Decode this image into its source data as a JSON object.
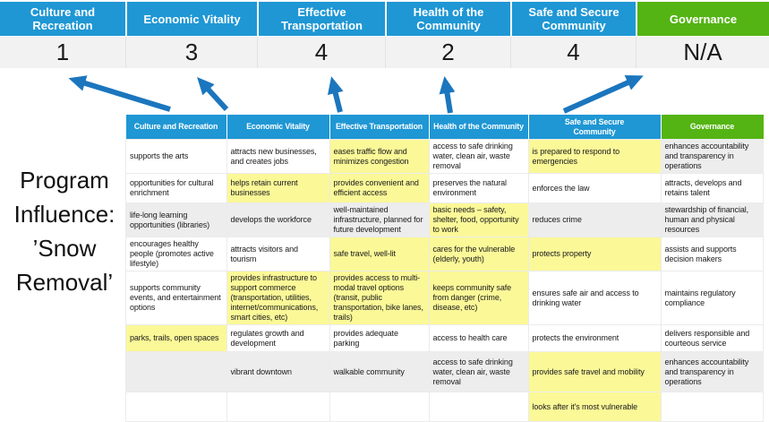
{
  "title": "Program Influence: ’Snow Removal’",
  "colors": {
    "header_blue": "#1F97D4",
    "header_green": "#54B413",
    "highlight_yellow": "#FBF898",
    "row_gray": "#EDEDED",
    "score_band_gray": "#F2F2F2",
    "arrow_blue": "#1B76BE",
    "text_dark": "#1A1A1A"
  },
  "top_band": {
    "columns": [
      {
        "label": "Culture and Recreation",
        "score": "1",
        "accent": "blue"
      },
      {
        "label": "Economic Vitality",
        "score": "3",
        "accent": "blue"
      },
      {
        "label": "Effective Transportation",
        "score": "4",
        "accent": "blue"
      },
      {
        "label": "Health of the Community",
        "score": "2",
        "accent": "blue"
      },
      {
        "label": "Safe and Secure Community",
        "score": "4",
        "accent": "blue"
      },
      {
        "label": "Governance",
        "score": "N/A",
        "accent": "green"
      }
    ]
  },
  "matrix": {
    "headers": [
      {
        "label": "Culture and Recreation",
        "accent": "blue"
      },
      {
        "label": "Economic Vitality",
        "accent": "blue"
      },
      {
        "label": "Effective Transportation",
        "accent": "blue"
      },
      {
        "label": "Health of the Community",
        "accent": "blue"
      },
      {
        "label": "Safe and Secure Community",
        "accent": "blue"
      },
      {
        "label": "Governance",
        "accent": "green"
      }
    ],
    "rows": [
      [
        {
          "t": "supports the arts",
          "bg": "white"
        },
        {
          "t": "attracts new businesses, and creates jobs",
          "bg": "white"
        },
        {
          "t": "eases traffic flow and minimizes congestion",
          "bg": "yellow"
        },
        {
          "t": "access to safe drinking water, clean air, waste removal",
          "bg": "white"
        },
        {
          "t": "is prepared to respond to emergencies",
          "bg": "yellow"
        },
        {
          "t": "enhances accountability and transparency in operations",
          "bg": "gray"
        }
      ],
      [
        {
          "t": "opportunities for cultural enrichment",
          "bg": "white"
        },
        {
          "t": "helps retain current businesses",
          "bg": "yellow"
        },
        {
          "t": "provides convenient and efficient access",
          "bg": "yellow"
        },
        {
          "t": "preserves the natural environment",
          "bg": "white"
        },
        {
          "t": "enforces the law",
          "bg": "white"
        },
        {
          "t": "attracts, develops and retains talent",
          "bg": "white"
        }
      ],
      [
        {
          "t": "life-long learning opportunities (libraries)",
          "bg": "gray"
        },
        {
          "t": "develops the workforce",
          "bg": "gray"
        },
        {
          "t": "well-maintained infrastructure, planned for future development",
          "bg": "gray"
        },
        {
          "t": "basic needs – safety, shelter, food, opportunity to work",
          "bg": "yellow"
        },
        {
          "t": "reduces crime",
          "bg": "gray"
        },
        {
          "t": "stewardship of financial, human and physical resources",
          "bg": "gray"
        }
      ],
      [
        {
          "t": "encourages healthy people (promotes active lifestyle)",
          "bg": "white"
        },
        {
          "t": "attracts visitors and tourism",
          "bg": "white"
        },
        {
          "t": "safe travel, well-lit",
          "bg": "yellow"
        },
        {
          "t": "cares for the vulnerable (elderly, youth)",
          "bg": "yellow"
        },
        {
          "t": "protects property",
          "bg": "yellow"
        },
        {
          "t": "assists and supports decision makers",
          "bg": "white"
        }
      ],
      [
        {
          "t": "supports community events, and entertainment options",
          "bg": "white"
        },
        {
          "t": "provides infrastructure to support commerce (transportation, utilities, internet/communications, smart cities, etc)",
          "bg": "yellow"
        },
        {
          "t": "provides access to multi-modal travel options (transit, public transportation, bike lanes, trails)",
          "bg": "yellow"
        },
        {
          "t": "keeps community safe from danger (crime, disease, etc)",
          "bg": "yellow"
        },
        {
          "t": "ensures safe air and access to drinking water",
          "bg": "white"
        },
        {
          "t": "maintains regulatory compliance",
          "bg": "white"
        }
      ],
      [
        {
          "t": "parks, trails, open spaces",
          "bg": "yellow"
        },
        {
          "t": "regulates growth and development",
          "bg": "white"
        },
        {
          "t": "provides adequate parking",
          "bg": "white"
        },
        {
          "t": "access to health care",
          "bg": "white"
        },
        {
          "t": "protects the environment",
          "bg": "white"
        },
        {
          "t": "delivers responsible and courteous service",
          "bg": "white"
        }
      ],
      [
        {
          "t": "",
          "bg": "gray"
        },
        {
          "t": "vibrant downtown",
          "bg": "gray"
        },
        {
          "t": "walkable community",
          "bg": "gray"
        },
        {
          "t": "access to safe drinking water, clean air, waste removal",
          "bg": "gray"
        },
        {
          "t": "provides safe travel and mobility",
          "bg": "yellow"
        },
        {
          "t": "enhances accountability and transparency in operations",
          "bg": "gray"
        }
      ],
      [
        {
          "t": "",
          "bg": "white"
        },
        {
          "t": "",
          "bg": "white"
        },
        {
          "t": "",
          "bg": "white"
        },
        {
          "t": "",
          "bg": "white"
        },
        {
          "t": "looks after it's most vulnerable",
          "bg": "yellow"
        },
        {
          "t": "",
          "bg": "white"
        }
      ]
    ]
  }
}
